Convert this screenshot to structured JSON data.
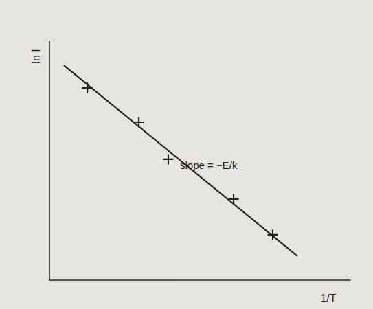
{
  "chart_data": {
    "type": "scatter",
    "x_label": "1/T",
    "y_label": "ln I",
    "annotations": [
      "slope = −E/k"
    ],
    "xlim": [
      0,
      10
    ],
    "ylim": [
      0,
      10
    ],
    "tick_labels": false,
    "grid": false,
    "series": [
      {
        "type": "scatter",
        "marker": "cross",
        "color": "#222222",
        "x": [
          1.26,
          2.97,
          3.95,
          6.12,
          7.42
        ],
        "values": [
          8.05,
          6.61,
          5.06,
          3.39,
          1.9
        ]
      },
      {
        "type": "line",
        "line_style": "solid",
        "color": "#222222",
        "x": [
          0.48,
          8.24
        ],
        "values": [
          8.99,
          1.01
        ]
      }
    ]
  }
}
